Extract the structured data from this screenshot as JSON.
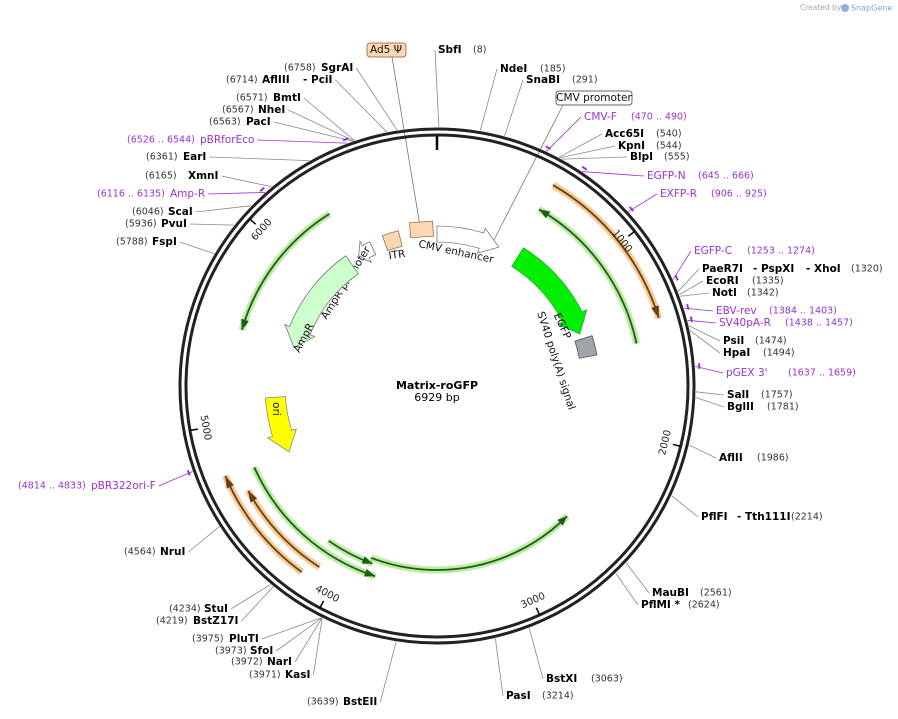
{
  "watermark": {
    "prefix": "Created by",
    "brand": "SnapGene"
  },
  "map": {
    "name": "Matrix-roGFP",
    "length": "6929 bp"
  },
  "callouts": [
    "Ad5 Ψ",
    "CMV promoter"
  ],
  "features": [
    "CMV enhancer",
    "ITR",
    "AmpR promoter",
    "AmpR",
    "ori",
    "EGFP",
    "SV40 poly(A) signal"
  ],
  "ticks": [
    1000,
    2000,
    3000,
    4000,
    5000,
    6000
  ],
  "sites": [
    {
      "labels": [
        "SbfI"
      ],
      "position": "(8)"
    },
    {
      "labels": [
        "NdeI"
      ],
      "position": "(185)"
    },
    {
      "labels": [
        "SnaBI"
      ],
      "position": "(291)"
    },
    {
      "labels": [
        "Acc65I"
      ],
      "position": "(540)"
    },
    {
      "labels": [
        "KpnI"
      ],
      "position": "(544)"
    },
    {
      "labels": [
        "BlpI"
      ],
      "position": "(555)"
    },
    {
      "labels": [
        "PaeR7I",
        "- PspXI",
        "- XhoI"
      ],
      "position": "(1320)"
    },
    {
      "labels": [
        "EcoRI"
      ],
      "position": "(1335)"
    },
    {
      "labels": [
        "NotI"
      ],
      "position": "(1342)"
    },
    {
      "labels": [
        "PsiI"
      ],
      "position": "(1474)"
    },
    {
      "labels": [
        "HpaI"
      ],
      "position": "(1494)"
    },
    {
      "labels": [
        "SalI"
      ],
      "position": "(1757)"
    },
    {
      "labels": [
        "BglII"
      ],
      "position": "(1781)"
    },
    {
      "labels": [
        "AflII"
      ],
      "position": "(1986)"
    },
    {
      "labels": [
        "PflFI",
        "- Tth111I"
      ],
      "position": "(2214)"
    },
    {
      "labels": [
        "MauBI"
      ],
      "position": "(2561)"
    },
    {
      "labels": [
        "PflMI *"
      ],
      "position": "(2624)"
    },
    {
      "labels": [
        "BstXI"
      ],
      "position": "(3063)"
    },
    {
      "labels": [
        "PasI"
      ],
      "position": "(3214)"
    },
    {
      "labels": [
        "BstEII"
      ],
      "position": "(3639)"
    },
    {
      "labels": [
        "KasI"
      ],
      "position": "(3971)"
    },
    {
      "labels": [
        "NarI"
      ],
      "position": "(3972)"
    },
    {
      "labels": [
        "SfoI"
      ],
      "position": "(3973)"
    },
    {
      "labels": [
        "PluTI"
      ],
      "position": "(3975)"
    },
    {
      "labels": [
        "BstZ17I"
      ],
      "position": "(4219)"
    },
    {
      "labels": [
        "StuI"
      ],
      "position": "(4234)"
    },
    {
      "labels": [
        "NruI"
      ],
      "position": "(4564)"
    },
    {
      "labels": [
        "FspI"
      ],
      "position": "(5788)"
    },
    {
      "labels": [
        "PvuI"
      ],
      "position": "(5936)"
    },
    {
      "labels": [
        "ScaI"
      ],
      "position": "(6046)"
    },
    {
      "labels": [
        "XmnI"
      ],
      "position": "(6165)"
    },
    {
      "labels": [
        "EarI"
      ],
      "position": "(6361)"
    },
    {
      "labels": [
        "PacI"
      ],
      "position": "(6563)"
    },
    {
      "labels": [
        "NheI"
      ],
      "position": "(6567)"
    },
    {
      "labels": [
        "BmtI"
      ],
      "position": "(6571)"
    },
    {
      "labels": [
        "AflIII",
        "- PciI"
      ],
      "position": "(6714)"
    },
    {
      "labels": [
        "SgrAI"
      ],
      "position": "(6758)"
    }
  ],
  "primers": [
    {
      "label": "CMV-F",
      "range": "(470 .. 490)"
    },
    {
      "label": "EGFP-N",
      "range": "(645 .. 666)"
    },
    {
      "label": "EXFP-R",
      "range": "(906 .. 925)"
    },
    {
      "label": "EGFP-C",
      "range": "(1253 .. 1274)"
    },
    {
      "label": "EBV-rev",
      "range": "(1384 .. 1403)"
    },
    {
      "label": "SV40pA-R",
      "range": "(1438 .. 1457)"
    },
    {
      "label": "pGEX 3'",
      "range": "(1637 .. 1659)"
    },
    {
      "label": "pBR322ori-F",
      "range": "(4814 .. 4833)"
    },
    {
      "label": "Amp-R",
      "range": "(6116 .. 6135)"
    },
    {
      "label": "pBRforEco",
      "range": "(6526 .. 6544)"
    }
  ]
}
